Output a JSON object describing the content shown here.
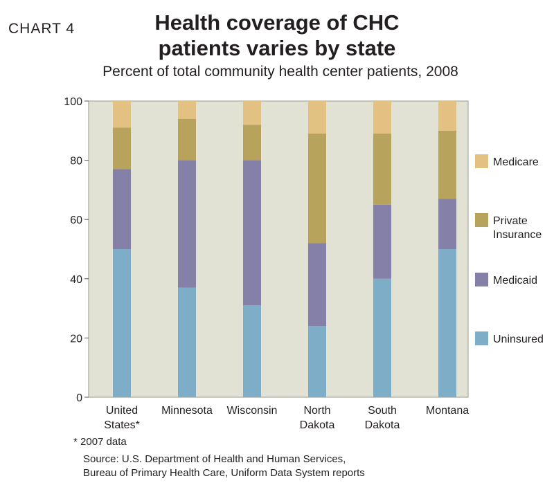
{
  "header": {
    "chart_label": "CHART 4",
    "title_line1": "Health coverage of CHC",
    "title_line2": "patients varies by state",
    "subtitle": "Percent of total community health center patients, 2008"
  },
  "chart_data": {
    "type": "bar",
    "stacked": true,
    "categories": [
      [
        "United",
        "States*"
      ],
      [
        "Minnesota"
      ],
      [
        "Wisconsin"
      ],
      [
        "North",
        "Dakota"
      ],
      [
        "South",
        "Dakota"
      ],
      [
        "Montana"
      ]
    ],
    "series": [
      {
        "name": "Uninsured",
        "color": "#7eadc8",
        "values": [
          50,
          37,
          31,
          24,
          40,
          50
        ]
      },
      {
        "name": "Medicaid",
        "color": "#8580a8",
        "values": [
          27,
          43,
          49,
          28,
          25,
          17
        ]
      },
      {
        "name": "Private Insurance",
        "color": "#b8a35c",
        "values": [
          14,
          14,
          12,
          37,
          24,
          23
        ]
      },
      {
        "name": "Medicare",
        "color": "#e3c182",
        "values": [
          9,
          6,
          8,
          11,
          11,
          10
        ]
      }
    ],
    "legend_order": [
      "Medicare",
      "Private Insurance",
      "Medicaid",
      "Uninsured"
    ],
    "legend_placement": "right",
    "ylim": [
      0,
      100
    ],
    "yticks": [
      0,
      20,
      40,
      60,
      80,
      100
    ],
    "grid": false,
    "plot_background": "#e2e2d4"
  },
  "footer": {
    "footnote": "* 2007 data",
    "source_line1": "Source: U.S. Department of Health and Human Services,",
    "source_line2": "Bureau of Primary Health Care, Uniform Data System reports"
  }
}
